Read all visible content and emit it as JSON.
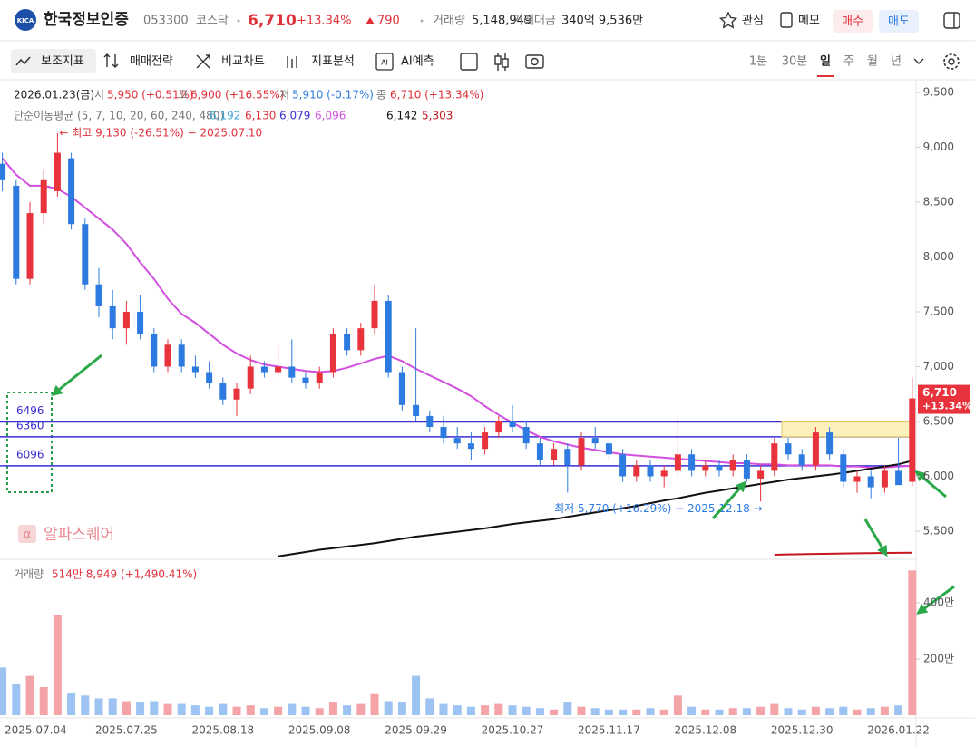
{
  "header": {
    "name": "한국정보인증",
    "code": "053300",
    "market": "코스닥",
    "price": "6,710",
    "change_pct": "+13.34%",
    "change": "790",
    "volume_label": "거래량",
    "volume": "5,148,949",
    "amount_label": "거래대금",
    "amount": "340억 9,536만",
    "buttons": [
      "관심",
      "메모",
      "매수",
      "매도"
    ]
  },
  "toolbar": {
    "tools": [
      "보조지표",
      "매매전략",
      "비교차트",
      "지표분석",
      "AI예측"
    ],
    "periods": [
      "1분",
      "30분",
      "일",
      "주",
      "월",
      "년"
    ]
  },
  "info": {
    "date": "2026.01.23(금)",
    "items": [
      {
        "label": "시",
        "value": "5,950 (+0.51%)",
        "color": "#e0303a"
      },
      {
        "label": "고",
        "value": "6,900 (+16.55%)",
        "color": "#e0303a"
      },
      {
        "label": "저",
        "value": "5,910 (-0.17%)",
        "color": "#2d7be0"
      },
      {
        "label": "종",
        "value": "6,710 (+13.34%)",
        "color": "#e0303a"
      }
    ]
  },
  "chart_data": {
    "type": "candlestick",
    "categories": [
      null,
      null,
      "2025.07.04",
      null,
      null,
      null,
      null,
      null,
      null,
      "2025.07.25",
      null,
      null,
      null,
      null,
      null,
      null,
      "2025.08.18",
      null,
      null,
      null,
      null,
      null,
      null,
      "2025.09.08",
      null,
      null,
      null,
      null,
      null,
      null,
      "2025.09.29",
      null,
      null,
      null,
      null,
      null,
      null,
      "2025.10.27",
      null,
      null,
      null,
      null,
      null,
      null,
      "2025.11.17",
      null,
      null,
      null,
      null,
      null,
      null,
      "2025.12.08",
      null,
      null,
      null,
      null,
      null,
      null,
      "2025.12.30",
      null,
      null,
      null,
      null,
      null,
      null,
      "2026.01.22",
      null
    ],
    "ohlc": [
      [
        8850,
        8950,
        8600,
        8700
      ],
      [
        8650,
        8700,
        7750,
        7800
      ],
      [
        7800,
        8500,
        7750,
        8400
      ],
      [
        8400,
        8800,
        8300,
        8700
      ],
      [
        8600,
        9130,
        8550,
        8950
      ],
      [
        8900,
        8950,
        8250,
        8300
      ],
      [
        8300,
        8350,
        7700,
        7750
      ],
      [
        7750,
        7900,
        7450,
        7550
      ],
      [
        7550,
        7700,
        7250,
        7350
      ],
      [
        7350,
        7600,
        7200,
        7500
      ],
      [
        7500,
        7650,
        7250,
        7300
      ],
      [
        7300,
        7350,
        6950,
        7000
      ],
      [
        7000,
        7250,
        6950,
        7200
      ],
      [
        7200,
        7250,
        6950,
        7000
      ],
      [
        7000,
        7100,
        6900,
        6950
      ],
      [
        6950,
        7050,
        6800,
        6850
      ],
      [
        6850,
        6900,
        6650,
        6700
      ],
      [
        6700,
        6850,
        6550,
        6800
      ],
      [
        6800,
        7100,
        6750,
        7000
      ],
      [
        7000,
        7050,
        6900,
        6950
      ],
      [
        6950,
        7200,
        6900,
        7000
      ],
      [
        7000,
        7250,
        6850,
        6900
      ],
      [
        6900,
        6950,
        6800,
        6850
      ],
      [
        6850,
        7000,
        6800,
        6950
      ],
      [
        6950,
        7350,
        6900,
        7300
      ],
      [
        7300,
        7350,
        7100,
        7150
      ],
      [
        7150,
        7400,
        7100,
        7350
      ],
      [
        7350,
        7750,
        7300,
        7600
      ],
      [
        7600,
        7650,
        6900,
        6950
      ],
      [
        6950,
        7000,
        6600,
        6650
      ],
      [
        6650,
        7350,
        6500,
        6550
      ],
      [
        6550,
        6600,
        6400,
        6450
      ],
      [
        6450,
        6550,
        6300,
        6350
      ],
      [
        6350,
        6450,
        6250,
        6300
      ],
      [
        6300,
        6400,
        6150,
        6250
      ],
      [
        6250,
        6450,
        6200,
        6400
      ],
      [
        6400,
        6550,
        6350,
        6500
      ],
      [
        6500,
        6650,
        6400,
        6450
      ],
      [
        6450,
        6500,
        6250,
        6300
      ],
      [
        6300,
        6350,
        6100,
        6150
      ],
      [
        6150,
        6300,
        6100,
        6250
      ],
      [
        6250,
        6300,
        5850,
        6100
      ],
      [
        6100,
        6400,
        6050,
        6350
      ],
      [
        6350,
        6450,
        6250,
        6300
      ],
      [
        6300,
        6350,
        6150,
        6200
      ],
      [
        6200,
        6250,
        5950,
        6000
      ],
      [
        6000,
        6150,
        5950,
        6100
      ],
      [
        6100,
        6150,
        5950,
        6000
      ],
      [
        6000,
        6100,
        5900,
        6050
      ],
      [
        6050,
        6550,
        6000,
        6200
      ],
      [
        6200,
        6250,
        6000,
        6050
      ],
      [
        6050,
        6150,
        6000,
        6100
      ],
      [
        6100,
        6150,
        6000,
        6050
      ],
      [
        6050,
        6200,
        6000,
        6150
      ],
      [
        6150,
        6200,
        5950,
        5980
      ],
      [
        5980,
        6100,
        5770,
        6050
      ],
      [
        6050,
        6350,
        6000,
        6300
      ],
      [
        6300,
        6350,
        6150,
        6200
      ],
      [
        6200,
        6250,
        6050,
        6100
      ],
      [
        6100,
        6450,
        6050,
        6400
      ],
      [
        6400,
        6450,
        6150,
        6200
      ],
      [
        6200,
        6250,
        5900,
        5950
      ],
      [
        5950,
        6050,
        5850,
        6000
      ],
      [
        6000,
        6050,
        5800,
        5900
      ],
      [
        5900,
        6100,
        5850,
        6050
      ],
      [
        6050,
        6350,
        5950,
        5920
      ],
      [
        5950,
        6900,
        5910,
        6710
      ]
    ],
    "up_color": "#e8323c",
    "down_color": "#2d7be0",
    "ylim": [
      5260,
      9558
    ],
    "yticks": [
      {
        "value": 5500,
        "label": "5,500"
      },
      {
        "value": 6000,
        "label": "6,000"
      },
      {
        "value": 6500,
        "label": "6,500"
      },
      {
        "value": 7000,
        "label": "7,000"
      },
      {
        "value": 7500,
        "label": "7,500"
      },
      {
        "value": 8000,
        "label": "8,000"
      },
      {
        "value": 8500,
        "label": "8,500"
      },
      {
        "value": 9000,
        "label": "9,000"
      },
      {
        "value": 9500,
        "label": "9,500"
      }
    ],
    "ma_title": "단순이동평균 (5, 7, 10, 20, 60, 240, 480)",
    "ma_labels": [
      {
        "label": "6,192",
        "color": "#3aa6d6"
      },
      {
        "label": "6,130",
        "color": "#e0303a"
      },
      {
        "label": "6,079",
        "color": "#3a2fd0"
      },
      {
        "label": "6,096",
        "color": "#d24fe0"
      },
      {
        "label": "6,142",
        "color": "#111111"
      },
      {
        "label": "5,303",
        "color": "#c6161e"
      }
    ],
    "ma_lines": [
      {
        "color": "#d24fe0",
        "values": [
          8900,
          8750,
          8650,
          8650,
          8620,
          8550,
          8450,
          8350,
          8250,
          8120,
          7950,
          7800,
          7620,
          7480,
          7400,
          7300,
          7200,
          7120,
          7060,
          7020,
          7000,
          6980,
          6960,
          6950,
          6960,
          6990,
          7030,
          7070,
          7100,
          7050,
          6980,
          6920,
          6860,
          6800,
          6730,
          6640,
          6560,
          6490,
          6420,
          6360,
          6320,
          6290,
          6260,
          6240,
          6220,
          6200,
          6190,
          6180,
          6170,
          6160,
          6150,
          6140,
          6130,
          6120,
          6120,
          6110,
          6110,
          6100,
          6100,
          6100,
          6100,
          6090,
          6090,
          6080,
          6080,
          6090,
          6096
        ]
      },
      {
        "color": "#111111",
        "values": [
          null,
          null,
          null,
          null,
          null,
          null,
          null,
          null,
          null,
          null,
          null,
          null,
          null,
          null,
          null,
          null,
          null,
          null,
          null,
          null,
          5270,
          5290,
          5310,
          5330,
          5345,
          5360,
          5375,
          5390,
          5410,
          5430,
          5450,
          5465,
          5480,
          5495,
          5510,
          5525,
          5545,
          5565,
          5580,
          5595,
          5610,
          5630,
          5650,
          5670,
          5690,
          5710,
          5730,
          5755,
          5780,
          5800,
          5825,
          5850,
          5870,
          5890,
          5910,
          5930,
          5950,
          5970,
          5985,
          6000,
          6015,
          6030,
          6050,
          6070,
          6090,
          6110,
          6142
        ]
      },
      {
        "color": "#c6161e",
        "values": [
          null,
          null,
          null,
          null,
          null,
          null,
          null,
          null,
          null,
          null,
          null,
          null,
          null,
          null,
          null,
          null,
          null,
          null,
          null,
          null,
          null,
          null,
          null,
          null,
          null,
          null,
          null,
          null,
          null,
          null,
          null,
          null,
          null,
          null,
          null,
          null,
          null,
          null,
          null,
          null,
          null,
          null,
          null,
          null,
          null,
          null,
          null,
          null,
          null,
          null,
          null,
          null,
          null,
          null,
          null,
          null,
          5285,
          5288,
          5290,
          5292,
          5294,
          5296,
          5298,
          5300,
          5301,
          5302,
          5303
        ]
      }
    ],
    "levels": [
      6496,
      6360,
      6096
    ],
    "level_color": "#3a2fd0",
    "high_note": "← 최고 9,130 (-26.51%) − 2025.07.10",
    "low_note": "최저 5,770 (+16.29%) − 2025.12.18 →",
    "price_tag": {
      "price": "6,710",
      "change": "+13.34%"
    },
    "watermark": "알파스퀘어",
    "volume": {
      "title": "거래량",
      "summary": "514만 8,949 (+1,490.41%)",
      "up_color": "#f4a3a8",
      "down_color": "#9cc3f2",
      "values": [
        170,
        110,
        140,
        100,
        355,
        80,
        70,
        60,
        60,
        50,
        45,
        50,
        40,
        40,
        35,
        30,
        40,
        30,
        35,
        25,
        30,
        40,
        30,
        25,
        45,
        35,
        40,
        75,
        50,
        45,
        140,
        60,
        40,
        35,
        30,
        35,
        40,
        35,
        30,
        25,
        20,
        45,
        30,
        25,
        20,
        20,
        20,
        25,
        20,
        70,
        30,
        20,
        20,
        25,
        25,
        30,
        40,
        25,
        20,
        30,
        25,
        30,
        20,
        25,
        30,
        35,
        514.8949
      ],
      "ylim": [
        0,
        545
      ],
      "yticks": [
        {
          "value": 200,
          "label": "200만"
        },
        {
          "value": 400,
          "label": "400만"
        }
      ]
    }
  }
}
